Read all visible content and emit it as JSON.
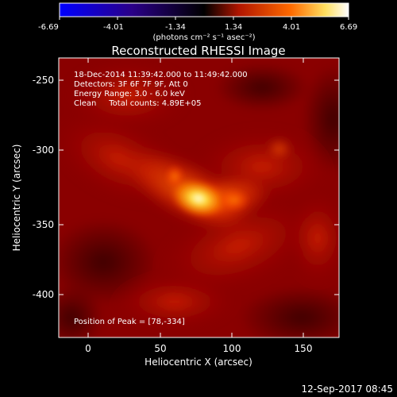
{
  "colorbar": {
    "tick_labels": [
      "-6.69",
      "-4.01",
      "-1.34",
      "1.34",
      "4.01",
      "6.69"
    ],
    "units_label": "(photons cm⁻² s⁻¹ asec⁻²)",
    "colors": [
      "#0000ff",
      "#220066",
      "#000000",
      "#aa1100",
      "#ff6600",
      "#ffee66",
      "#ffffff"
    ]
  },
  "plot": {
    "title": "Reconstructed RHESSI Image",
    "info_lines": [
      "18-Dec-2014 11:39:42.000 to 11:49:42.000",
      "Detectors: 3F 6F 7F 9F, Att 0",
      "Energy Range: 3.0 - 6.0 keV",
      "Clean     Total counts: 4.89E+05"
    ],
    "peak_text": "Position of Peak = [78,-334]",
    "xlabel": "Heliocentric X (arcsec)",
    "ylabel": "Heliocentric Y (arcsec)",
    "x_ticks": [
      "0",
      "50",
      "100",
      "150"
    ],
    "y_ticks": [
      "-250",
      "-300",
      "-350",
      "-400"
    ]
  },
  "footer": {
    "timestamp": "12-Sep-2017 08:45"
  }
}
